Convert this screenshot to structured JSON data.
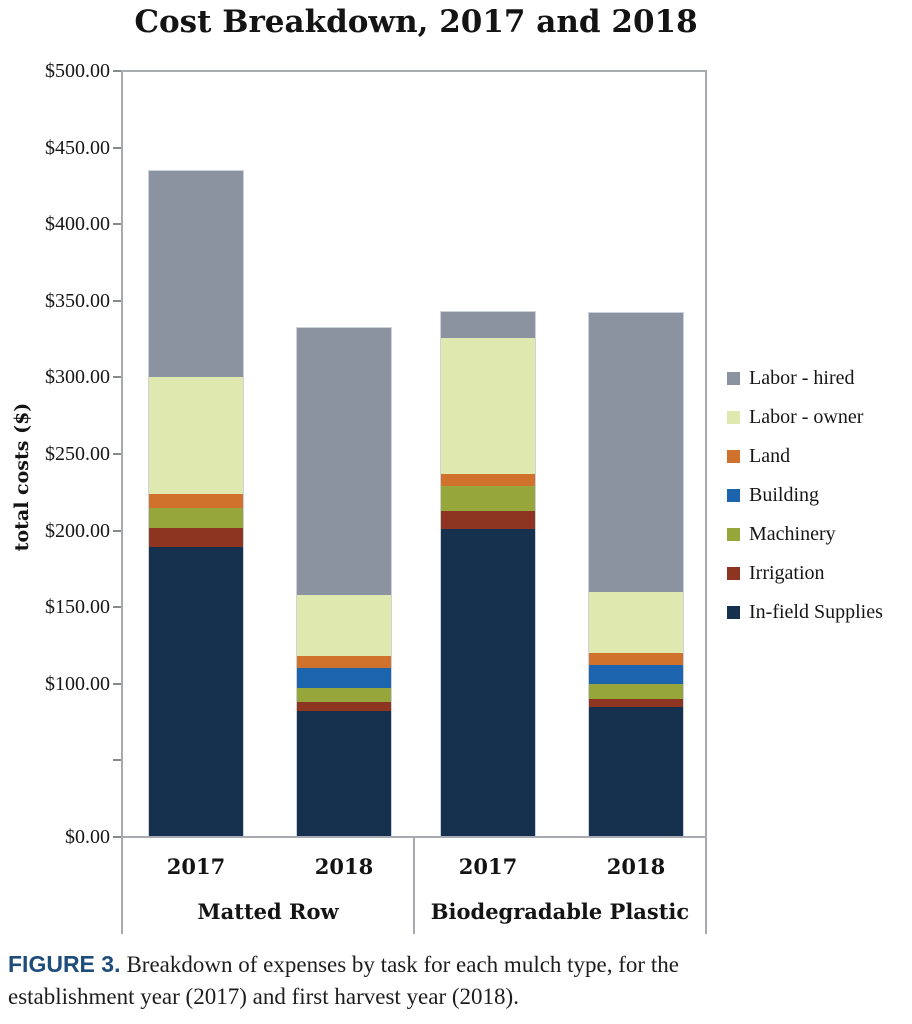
{
  "chart_data": {
    "type": "bar",
    "stacked": true,
    "title": "Cost Breakdown, 2017 and 2018",
    "ylabel": "total costs ($)",
    "xlabel": "",
    "ylim": [
      0,
      500
    ],
    "grid": false,
    "legend_position": "right",
    "y_ticks": [
      {
        "value": 500,
        "label": "$500.00"
      },
      {
        "value": 450,
        "label": "$450.00"
      },
      {
        "value": 400,
        "label": "$400.00"
      },
      {
        "value": 350,
        "label": "$350.00"
      },
      {
        "value": 300,
        "label": "$300.00"
      },
      {
        "value": 250,
        "label": "$250.00"
      },
      {
        "value": 200,
        "label": "$200.00"
      },
      {
        "value": 150,
        "label": "$150.00"
      },
      {
        "value": 100,
        "label": "$100.00"
      },
      {
        "value": 50,
        "label": ""
      },
      {
        "value": 0,
        "label": "$0.00"
      }
    ],
    "groups": [
      {
        "label": "Matted Row",
        "bars": [
          "2017",
          "2018"
        ]
      },
      {
        "label": "Biodegradable Plastic",
        "bars": [
          "2017",
          "2018"
        ]
      }
    ],
    "categories": [
      "Matted Row 2017",
      "Matted Row 2018",
      "Biodegradable Plastic 2017",
      "Biodegradable Plastic 2018"
    ],
    "series": [
      {
        "name": "In-field Supplies",
        "color": "#16314E",
        "values": [
          189,
          82,
          201,
          85
        ]
      },
      {
        "name": "Irrigation",
        "color": "#8D3520",
        "values": [
          13,
          6,
          12,
          5
        ]
      },
      {
        "name": "Machinery",
        "color": "#97A63A",
        "values": [
          13,
          9,
          16,
          10
        ]
      },
      {
        "name": "Building",
        "color": "#1C64AD",
        "values": [
          0,
          13,
          0,
          12
        ]
      },
      {
        "name": "Land",
        "color": "#D0722B",
        "values": [
          9,
          8,
          8,
          8
        ]
      },
      {
        "name": "Labor - owner",
        "color": "#DFE8AF",
        "values": [
          76,
          40,
          89,
          40
        ]
      },
      {
        "name": "Labor - hired",
        "color": "#8B92A0",
        "values": [
          135,
          174,
          17,
          182
        ]
      }
    ],
    "legend": [
      "Labor - hired",
      "Labor - owner",
      "Land",
      "Building",
      "Machinery",
      "Irrigation",
      "In-field Supplies"
    ]
  },
  "caption": {
    "label": "FIGURE 3.",
    "label_color": "#1E4D7B",
    "lines": [
      "Breakdown of expenses by task for each mulch type, for the",
      "establishment year (2017) and first harvest year (2018)."
    ]
  }
}
